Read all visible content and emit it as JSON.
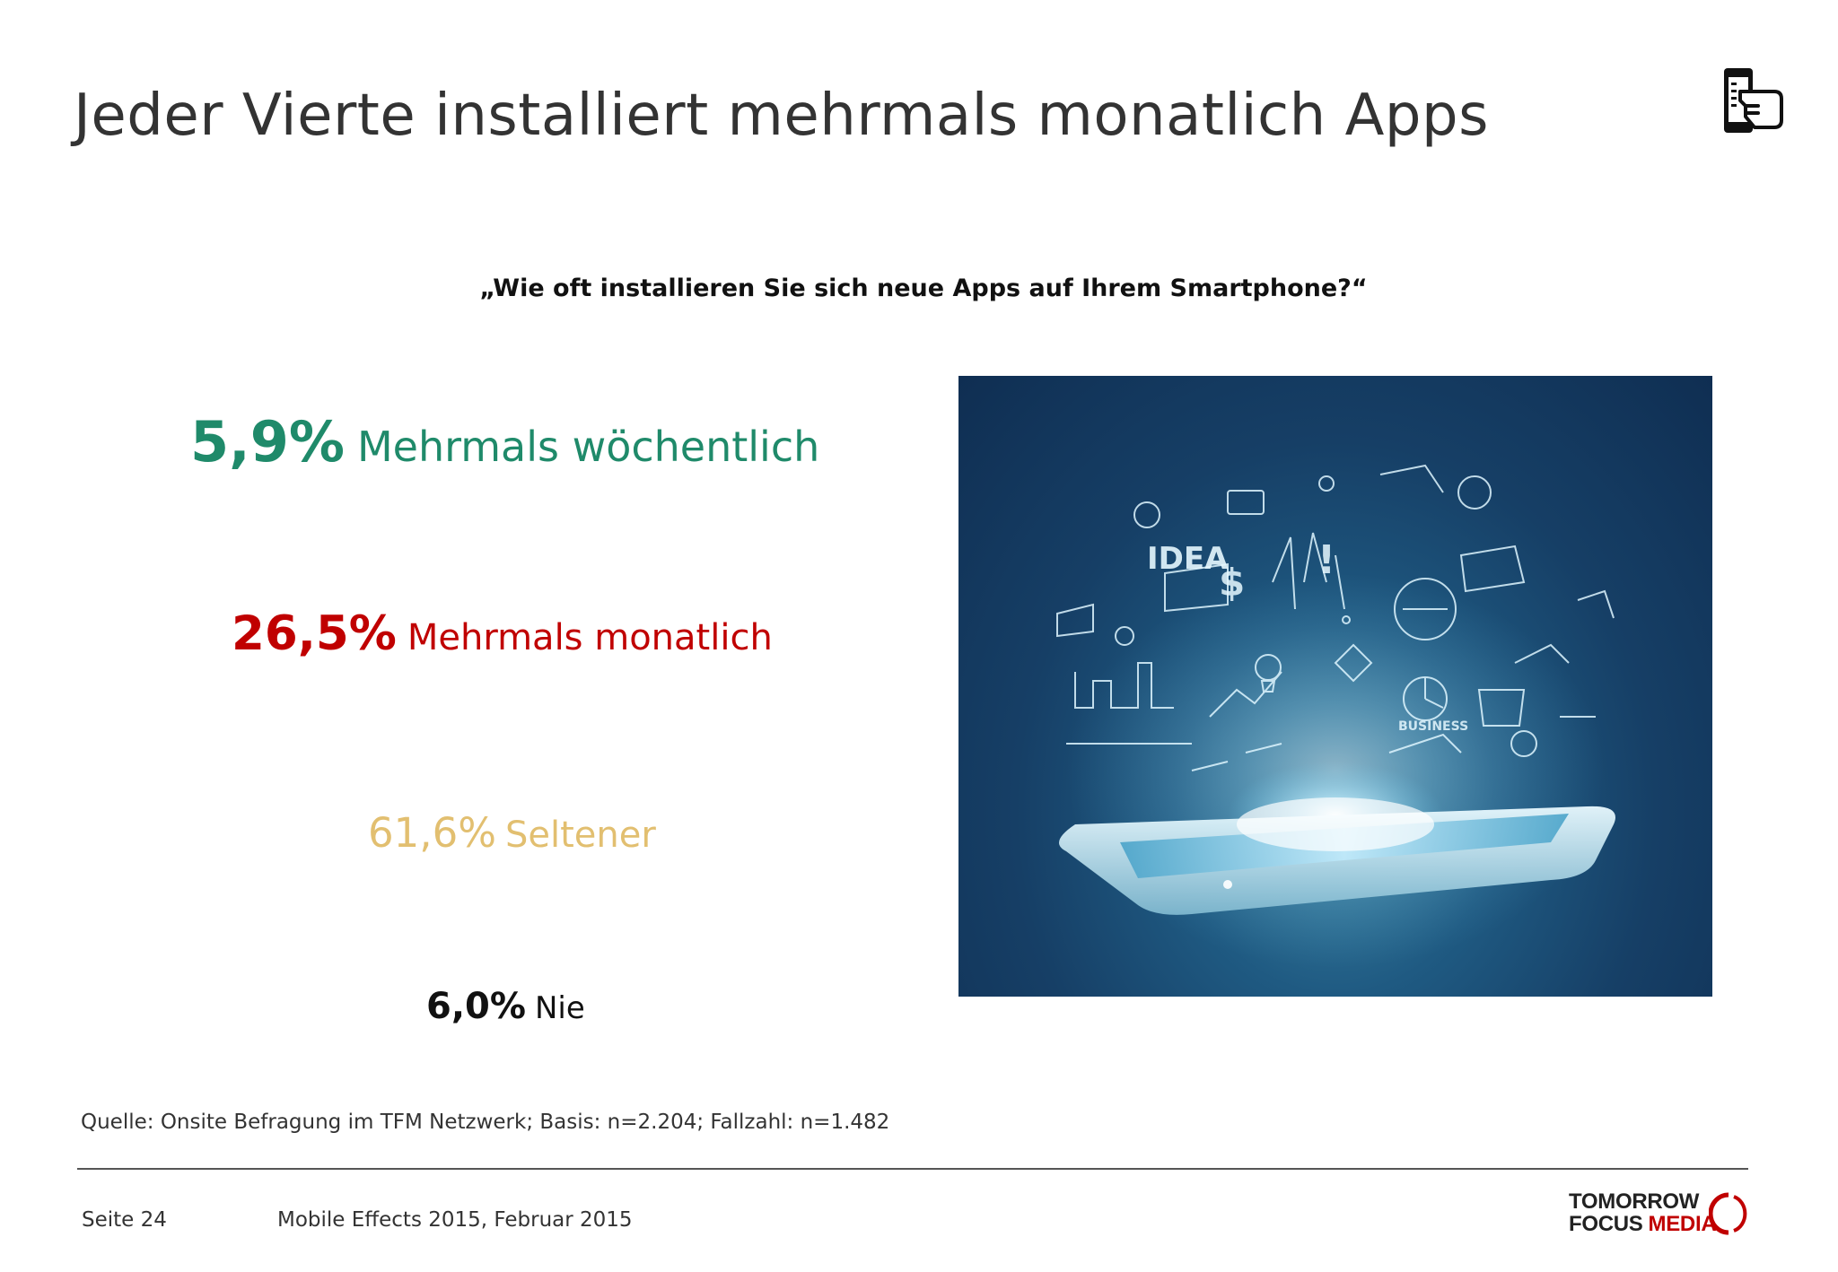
{
  "slide": {
    "title": "Jeder Vierte installiert mehrmals monatlich Apps",
    "question": "„Wie oft installieren Sie sich neue Apps auf Ihrem Smartphone?“"
  },
  "stats": [
    {
      "percent": "5,9%",
      "label": "Mehrmals wöchentlich",
      "color": "#1f8a6a"
    },
    {
      "percent": "26,5%",
      "label": "Mehrmals monatlich",
      "color": "#c00000"
    },
    {
      "percent": "61,6%",
      "label": "Seltener",
      "color": "#e2bf70"
    },
    {
      "percent": "6,0%",
      "label": "Nie",
      "color": "#111111"
    }
  ],
  "image": {
    "icon": "smartphone-ideas-illustration"
  },
  "source": "Quelle: Onsite Befragung im TFM Netzwerk; Basis: n=2.204; Fallzahl: n=1.482",
  "footer": {
    "page": "Seite 24",
    "title": "Mobile Effects 2015, Februar 2015",
    "logo_line1": "TOMORROW",
    "logo_line2a": "FOCUS",
    "logo_line2b": "MEDIA"
  },
  "icons": {
    "corner": "hand-holding-phone-icon"
  }
}
